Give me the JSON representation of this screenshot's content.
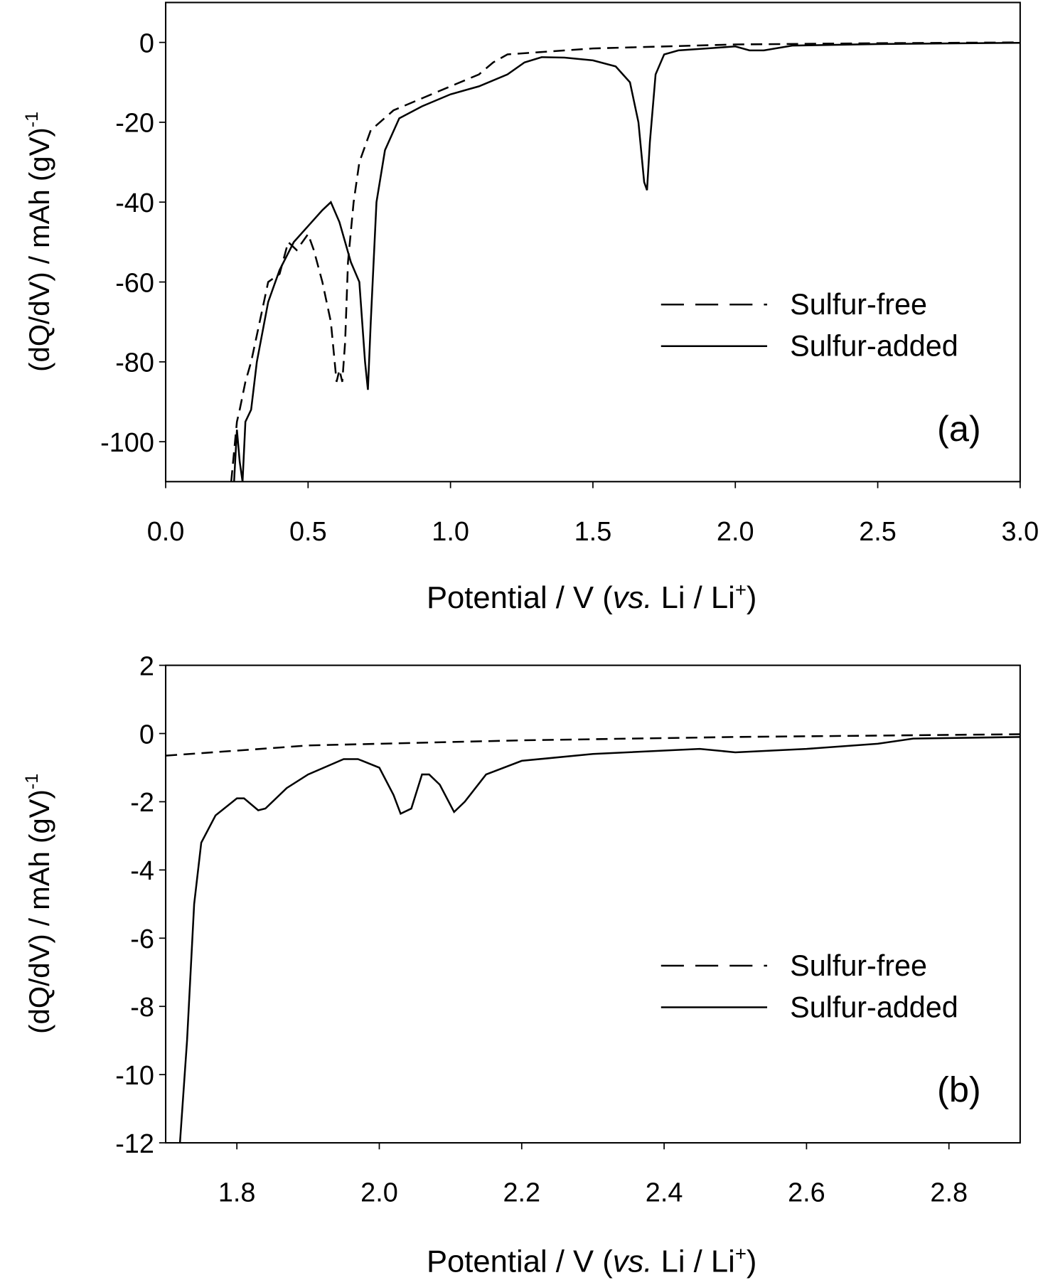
{
  "chart_data": [
    {
      "type": "line",
      "panel_label": "(a)",
      "xlabel": [
        "Potential / V (",
        "vs.",
        " Li / Li",
        "+",
        ")"
      ],
      "ylabel": [
        "(dQ/dV) / mAh (gV)",
        "-1"
      ],
      "xlim": [
        0,
        3
      ],
      "xticks": [
        {
          "value": 0,
          "label": "0.0"
        },
        0.5,
        {
          "value": 1,
          "label": "1.0"
        },
        1.5,
        {
          "value": 2,
          "label": "2.0"
        },
        2.5,
        {
          "value": 3,
          "label": "3.0"
        }
      ],
      "ylim": [
        -110,
        10
      ],
      "yticks": [
        0,
        -20,
        -40,
        -60,
        -80,
        -100
      ],
      "grid": false,
      "legend": "center right",
      "series": [
        {
          "name": "Sulfur-free",
          "color": "#000000",
          "linestyle": "dashed",
          "x": [
            0.23,
            0.25,
            0.26,
            0.28,
            0.3,
            0.33,
            0.36,
            0.4,
            0.43,
            0.46,
            0.5,
            0.52,
            0.55,
            0.58,
            0.6,
            0.61,
            0.62,
            0.63,
            0.64,
            0.66,
            0.68,
            0.72,
            0.8,
            0.9,
            1.0,
            1.1,
            1.15,
            1.2,
            1.5,
            2.0,
            2.5,
            3.0
          ],
          "values": [
            -110,
            -95,
            -92,
            -85,
            -80,
            -70,
            -60,
            -58,
            -50,
            -52,
            -48,
            -52,
            -60,
            -70,
            -85,
            -82,
            -85,
            -75,
            -55,
            -40,
            -30,
            -22,
            -17,
            -14,
            -11,
            -8,
            -5,
            -3,
            -1.5,
            -0.5,
            -0.2,
            0
          ]
        },
        {
          "name": "Sulfur-added",
          "color": "#000000",
          "linestyle": "solid",
          "x": [
            0.24,
            0.25,
            0.26,
            0.27,
            0.28,
            0.3,
            0.32,
            0.36,
            0.4,
            0.45,
            0.5,
            0.55,
            0.58,
            0.61,
            0.65,
            0.68,
            0.7,
            0.71,
            0.72,
            0.74,
            0.77,
            0.82,
            0.9,
            1.0,
            1.1,
            1.2,
            1.26,
            1.32,
            1.4,
            1.5,
            1.58,
            1.63,
            1.66,
            1.68,
            1.69,
            1.7,
            1.72,
            1.75,
            1.8,
            1.9,
            2.0,
            2.05,
            2.1,
            2.2,
            2.5,
            3.0
          ],
          "values": [
            -110,
            -97,
            -105,
            -110,
            -95,
            -92,
            -80,
            -65,
            -57,
            -50,
            -46,
            -42,
            -40,
            -45,
            -55,
            -60,
            -80,
            -87,
            -70,
            -40,
            -27,
            -19,
            -16,
            -13,
            -11,
            -8,
            -5,
            -3.7,
            -3.8,
            -4.5,
            -6,
            -10,
            -20,
            -35,
            -37,
            -25,
            -8,
            -3,
            -2,
            -1.5,
            -1,
            -2,
            -2,
            -0.8,
            -0.4,
            -0.1
          ]
        }
      ]
    },
    {
      "type": "line",
      "panel_label": "(b)",
      "xlabel": [
        "Potential / V (",
        "vs.",
        " Li / Li",
        "+",
        ")"
      ],
      "ylabel": [
        "(dQ/dV) / mAh (gV)",
        "-1"
      ],
      "xlim": [
        1.7,
        2.9
      ],
      "xticks": [
        1.8,
        {
          "value": 2,
          "label": "2.0"
        },
        2.2,
        2.4,
        2.6,
        2.8
      ],
      "ylim": [
        -12,
        2
      ],
      "yticks": [
        2,
        0,
        -2,
        -4,
        -6,
        -8,
        -10,
        -12
      ],
      "grid": false,
      "legend": "center right",
      "series": [
        {
          "name": "Sulfur-free",
          "color": "#000000",
          "linestyle": "dashed",
          "x": [
            1.7,
            1.8,
            1.9,
            2.0,
            2.2,
            2.5,
            2.9
          ],
          "values": [
            -0.65,
            -0.5,
            -0.35,
            -0.3,
            -0.2,
            -0.1,
            -0.02
          ]
        },
        {
          "name": "Sulfur-added",
          "color": "#000000",
          "linestyle": "solid",
          "x": [
            1.72,
            1.73,
            1.74,
            1.75,
            1.77,
            1.8,
            1.81,
            1.83,
            1.84,
            1.87,
            1.9,
            1.95,
            1.97,
            2.0,
            2.02,
            2.03,
            2.045,
            2.06,
            2.07,
            2.085,
            2.105,
            2.12,
            2.15,
            2.2,
            2.3,
            2.45,
            2.5,
            2.6,
            2.7,
            2.75,
            2.9
          ],
          "values": [
            -12,
            -9,
            -5,
            -3.2,
            -2.4,
            -1.9,
            -1.9,
            -2.25,
            -2.2,
            -1.6,
            -1.2,
            -0.75,
            -0.75,
            -1.0,
            -1.8,
            -2.35,
            -2.2,
            -1.2,
            -1.2,
            -1.5,
            -2.3,
            -2.0,
            -1.2,
            -0.8,
            -0.6,
            -0.45,
            -0.55,
            -0.45,
            -0.3,
            -0.15,
            -0.1
          ]
        }
      ]
    }
  ]
}
